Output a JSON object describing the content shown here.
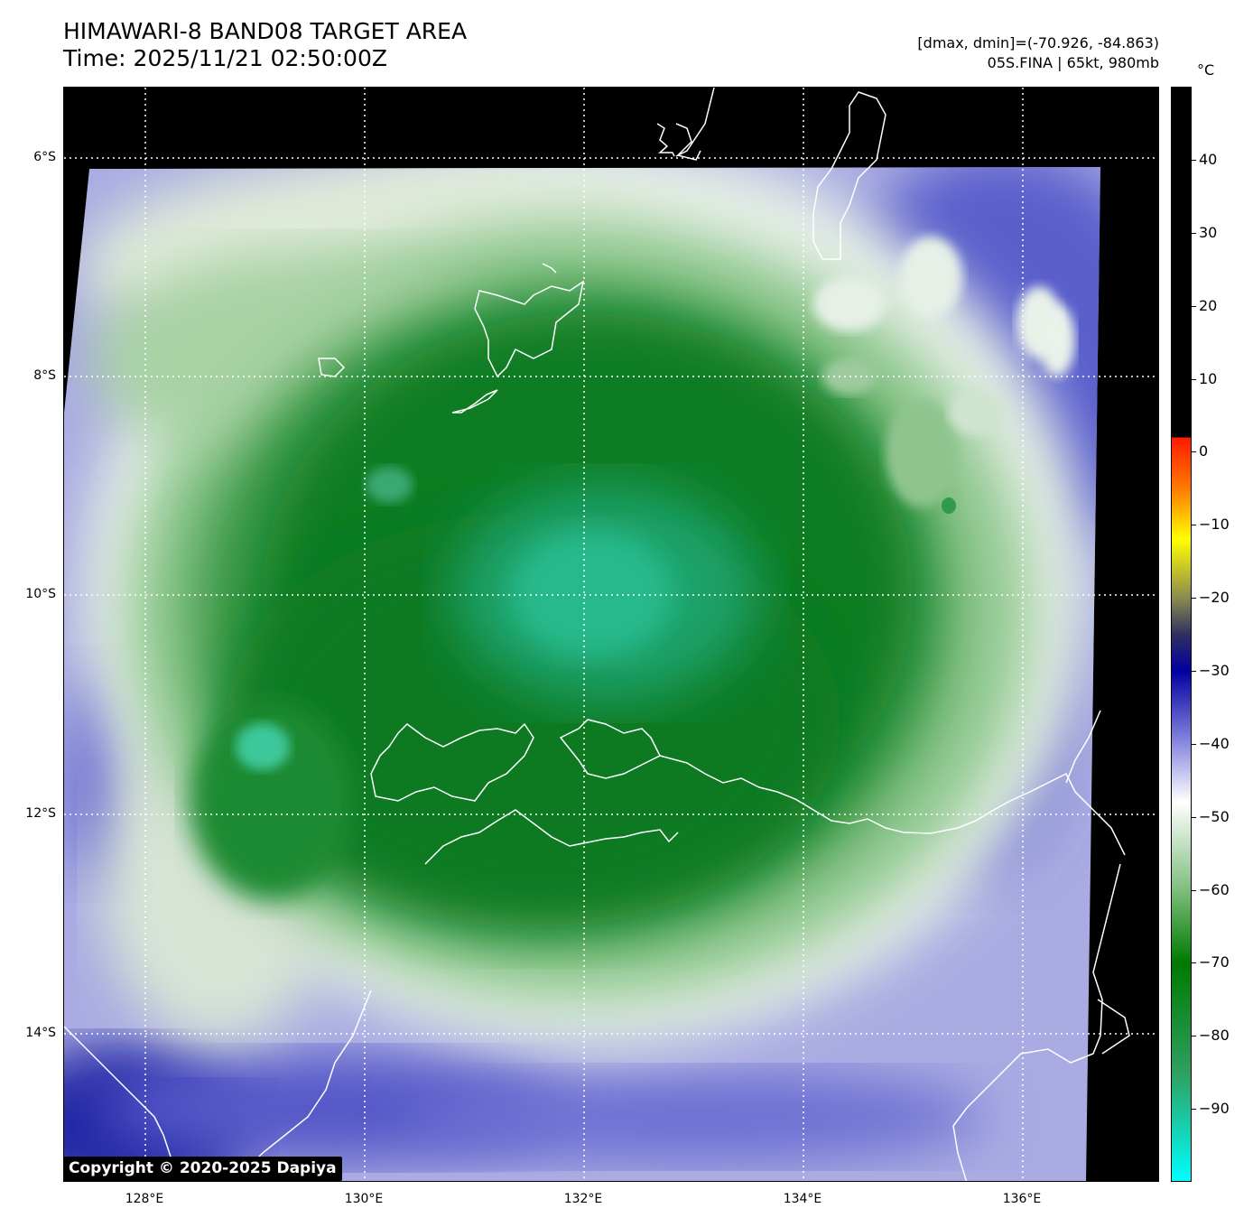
{
  "header": {
    "title_line1": "HIMAWARI-8 BAND08 TARGET AREA",
    "title_line2": "Time: 2025/11/21 02:50:00Z",
    "info_line1": "[dmax, dmin]=(-70.926, -84.863)",
    "info_line2": "05S.FINA | 65kt, 980mb"
  },
  "map": {
    "lat_labels": [
      "6°S",
      "8°S",
      "10°S",
      "12°S",
      "14°S"
    ],
    "lon_labels": [
      "128°E",
      "130°E",
      "132°E",
      "134°E",
      "136°E"
    ],
    "copyright": "Copyright © 2020-2025 Dapiya",
    "colors": {
      "background": "#000000",
      "coast": "#ffffff",
      "deep_green": "#0d7a1c",
      "teal_core": "#1fb58a",
      "light_green": "#8ec98e",
      "white_cloud": "#eef4ee",
      "lavender": "#aeb0e6",
      "blue": "#4a4ec2",
      "deep_blue": "#1a1e9e"
    }
  },
  "colorbar": {
    "unit": "°C",
    "ticks": [
      "40",
      "30",
      "20",
      "10",
      "0",
      "−10",
      "−20",
      "−30",
      "−40",
      "−50",
      "−60",
      "−70",
      "−80",
      "−90"
    ],
    "range": [
      -100,
      50
    ]
  }
}
